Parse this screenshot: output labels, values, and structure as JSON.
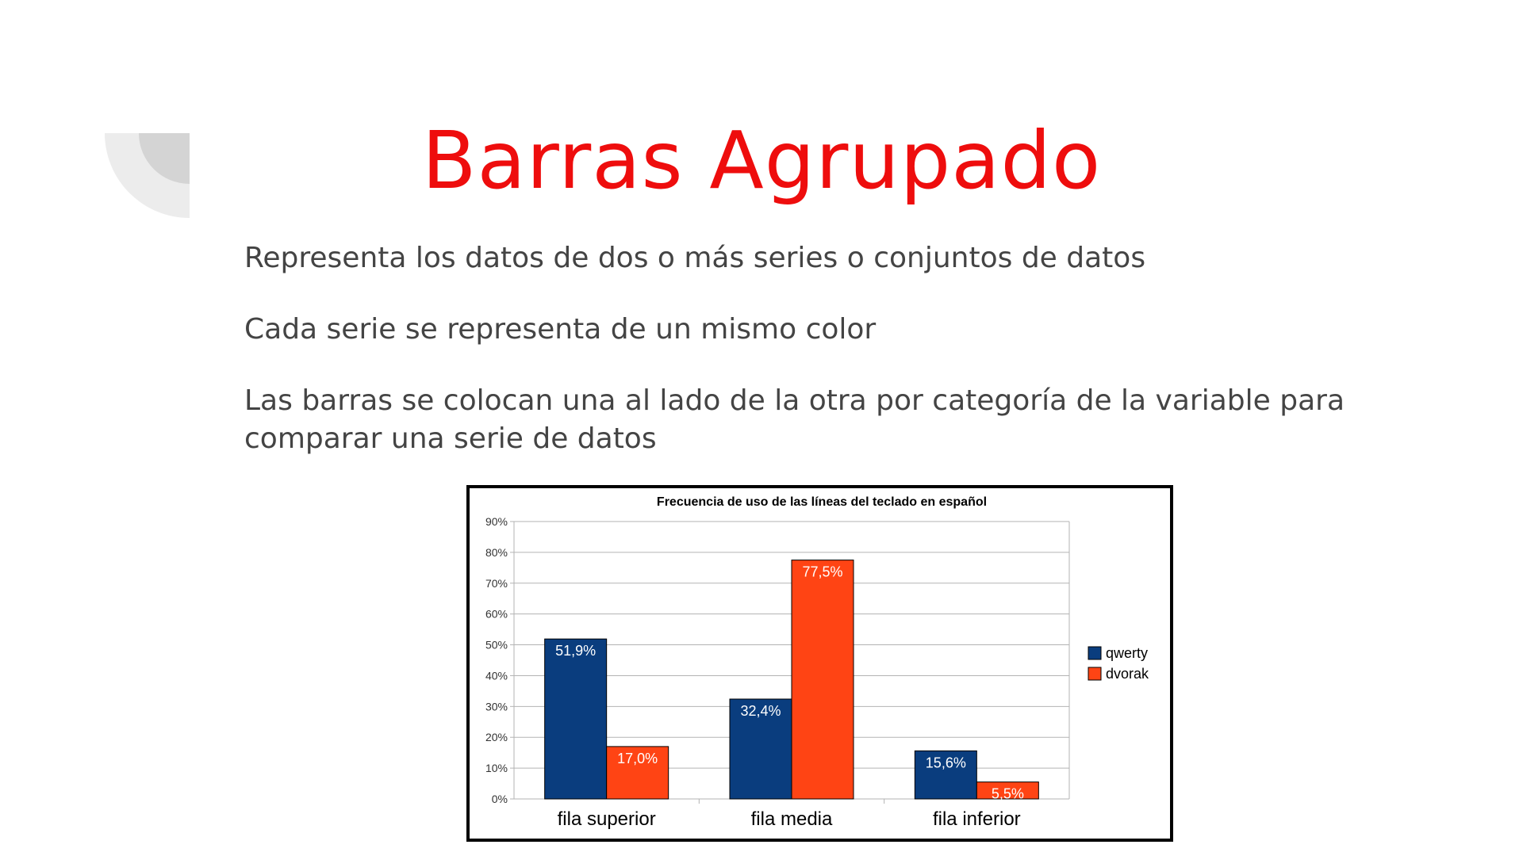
{
  "slide": {
    "title": "Barras Agrupado",
    "bullets": [
      "Representa los datos de dos o más series o conjuntos de datos",
      "Cada serie se representa de un mismo color",
      "Las barras se colocan una al lado de la otra por categoría de la variable para comparar una serie de datos"
    ],
    "title_color": "#ee0d0d",
    "text_color": "#444444"
  },
  "chart_data": {
    "type": "bar",
    "title": "Frecuencia de uso de las líneas del teclado en español",
    "categories": [
      "fila superior",
      "fila media",
      "fila inferior"
    ],
    "series": [
      {
        "name": "qwerty",
        "values": [
          51.9,
          32.4,
          15.6
        ],
        "labels": [
          "51,9%",
          "32,4%",
          "15,6%"
        ],
        "color": "#0a3d7e"
      },
      {
        "name": "dvorak",
        "values": [
          17.0,
          77.5,
          5.5
        ],
        "labels": [
          "17,0%",
          "77,5%",
          "5,5%"
        ],
        "color": "#ff4414"
      }
    ],
    "ylim": [
      0,
      90
    ],
    "yticks": [
      "0%",
      "10%",
      "20%",
      "30%",
      "40%",
      "50%",
      "60%",
      "70%",
      "80%",
      "90%"
    ],
    "grid": true,
    "legend_position": "right"
  }
}
